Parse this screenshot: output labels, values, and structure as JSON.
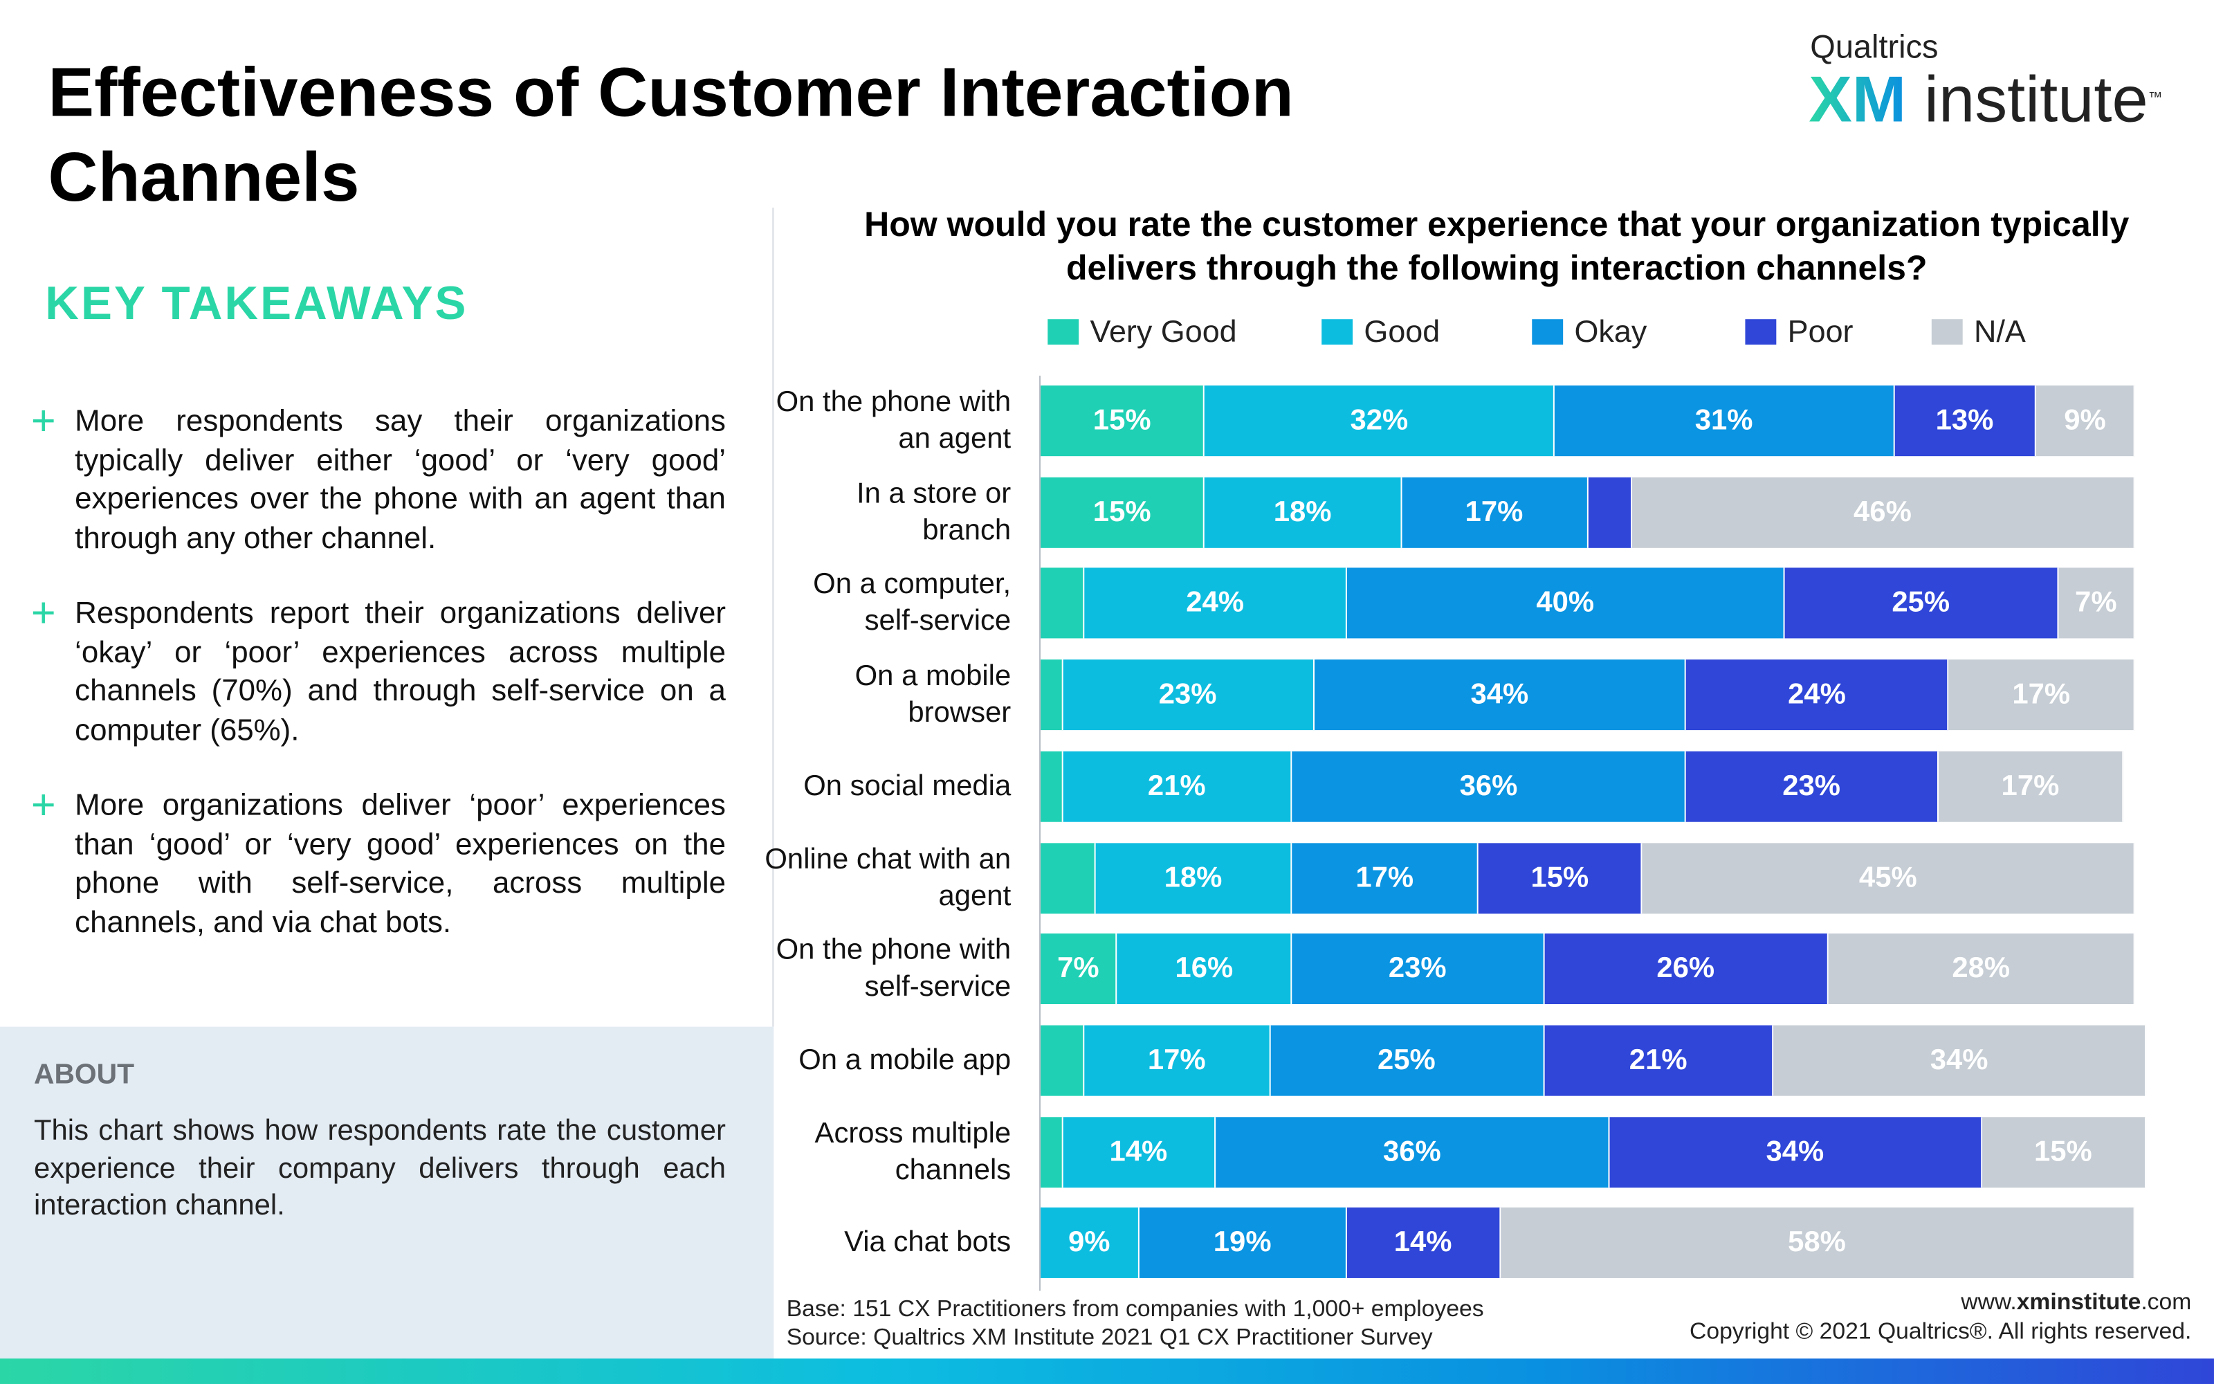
{
  "header": {
    "title": "Effectiveness of Customer Interaction Channels",
    "logo_top": "Qualtrics",
    "logo_main": "XM",
    "logo_sub": "institute",
    "logo_tm": "™"
  },
  "takeaways": {
    "heading": "KEY TAKEAWAYS",
    "items": [
      "More respondents say their organizations typically deliver either ‘good’ or ‘very good’ experiences over the phone with an agent than through any other channel.",
      "Respondents report their organizations deliver ‘okay’ or ‘poor’ experiences across multiple channels (70%) and through self-service on a computer (65%).",
      "More organizations deliver ‘poor’ experiences than ‘good’ or ‘very good’ experiences on the phone with self-service, across multiple channels, and via chat bots."
    ]
  },
  "about": {
    "heading": "ABOUT",
    "text": "This chart shows how respondents rate the customer experience their company delivers through each interaction channel."
  },
  "chart_data": {
    "type": "stacked_bar_horizontal",
    "title": "How would you rate the customer experience that your organization typically delivers through the following interaction channels?",
    "categories": [
      "On the phone with an agent",
      "In a store or branch",
      "On a computer, self-service",
      "On a mobile browser",
      "On social media",
      "Online chat with an agent",
      "On the phone with self-service",
      "On a mobile app",
      "Across multiple channels",
      "Via chat bots"
    ],
    "xlim": [
      0,
      100
    ],
    "series": [
      {
        "name": "Very Good",
        "color": "#1fd0b4",
        "values": [
          15,
          15,
          4,
          2,
          2,
          5,
          7,
          4,
          2,
          0
        ],
        "value_labels": [
          "15%",
          "15%",
          null,
          null,
          null,
          null,
          "7%",
          null,
          null,
          null
        ]
      },
      {
        "name": "Good",
        "color": "#0dbde0",
        "values": [
          32,
          18,
          24,
          23,
          21,
          18,
          16,
          17,
          14,
          9
        ],
        "value_labels": [
          "32%",
          "18%",
          "24%",
          "23%",
          "21%",
          "18%",
          "16%",
          "17%",
          "14%",
          "9%"
        ]
      },
      {
        "name": "Okay",
        "color": "#0a94e2",
        "values": [
          31,
          17,
          40,
          34,
          36,
          17,
          23,
          25,
          36,
          19
        ],
        "value_labels": [
          "31%",
          "17%",
          "40%",
          "34%",
          "36%",
          "17%",
          "23%",
          "25%",
          "36%",
          "19%"
        ]
      },
      {
        "name": "Poor",
        "color": "#2f46d8",
        "values": [
          13,
          4,
          25,
          24,
          23,
          15,
          26,
          21,
          34,
          14
        ],
        "value_labels": [
          "13%",
          null,
          "25%",
          "24%",
          "23%",
          "15%",
          "26%",
          "21%",
          "34%",
          "14%"
        ]
      },
      {
        "name": "N/A",
        "color": "#c6cdd4",
        "values": [
          9,
          46,
          7,
          17,
          17,
          45,
          28,
          34,
          15,
          58
        ],
        "value_labels": [
          "9%",
          "46%",
          "7%",
          "17%",
          "17%",
          "45%",
          "28%",
          "34%",
          "15%",
          "58%"
        ]
      }
    ]
  },
  "footer": {
    "base": "Base: 151 CX Practitioners from companies with 1,000+ employees",
    "source": "Source: Qualtrics XM Institute 2021 Q1 CX Practitioner Survey",
    "web_pre": "www.",
    "web_bold": "xminstitute",
    "web_post": ".com",
    "copyright": "Copyright © 2021 Qualtrics®. All rights reserved."
  }
}
